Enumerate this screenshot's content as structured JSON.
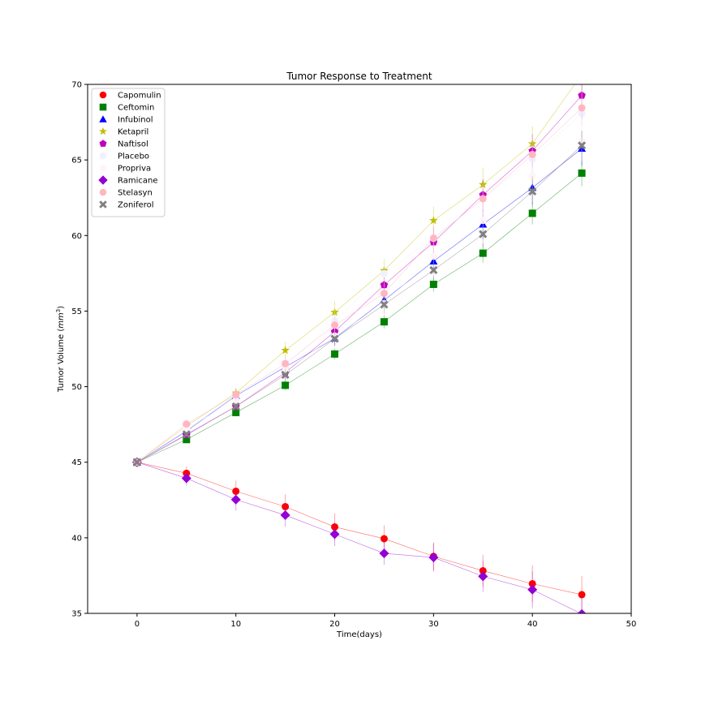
{
  "chart_data": {
    "type": "line",
    "title": "Tumor Response to Treatment",
    "xlabel": "Time(days)",
    "ylabel_main": "Tumor Volume (",
    "ylabel_mm": "mm",
    "ylabel_exp": "3",
    "ylabel_close": ")",
    "xlim": [
      -5,
      50
    ],
    "ylim": [
      35,
      70
    ],
    "xticks": [
      0,
      10,
      20,
      30,
      40,
      50
    ],
    "yticks": [
      35,
      40,
      45,
      50,
      55,
      60,
      65,
      70
    ],
    "grid": false,
    "legend_position": "top-left",
    "x": [
      0,
      5,
      10,
      15,
      20,
      25,
      30,
      35,
      40,
      45
    ],
    "series": [
      {
        "name": "Capomulin",
        "color": "#ff0000",
        "marker": "circle",
        "values": [
          45.0,
          44.27,
          43.08,
          42.06,
          40.72,
          39.94,
          38.77,
          37.82,
          36.96,
          36.24
        ],
        "errors": [
          0,
          0.45,
          0.7,
          0.84,
          0.91,
          0.88,
          0.93,
          1.05,
          1.22,
          1.22
        ]
      },
      {
        "name": "Ceftomin",
        "color": "#008000",
        "marker": "square",
        "values": [
          45.0,
          46.5,
          48.29,
          50.09,
          52.16,
          54.29,
          56.77,
          58.83,
          61.47,
          64.13
        ],
        "errors": [
          0,
          0.16,
          0.24,
          0.33,
          0.36,
          0.44,
          0.49,
          0.62,
          0.74,
          0.87
        ]
      },
      {
        "name": "Infubinol",
        "color": "#0000ff",
        "marker": "triangle",
        "values": [
          45.0,
          47.06,
          49.4,
          51.3,
          53.2,
          55.72,
          58.3,
          60.74,
          63.16,
          65.76
        ],
        "errors": [
          0,
          0.24,
          0.28,
          0.36,
          0.48,
          0.55,
          0.63,
          0.98,
          1.06,
          1.14
        ]
      },
      {
        "name": "Ketapril",
        "color": "#bfbf00",
        "marker": "star",
        "values": [
          45.0,
          47.39,
          49.58,
          52.4,
          54.92,
          57.68,
          60.99,
          63.37,
          66.07,
          70.66
        ],
        "errors": [
          0,
          0.26,
          0.36,
          0.58,
          0.73,
          0.76,
          0.93,
          1.13,
          1.16,
          1.45
        ]
      },
      {
        "name": "Naftisol",
        "color": "#bf00bf",
        "marker": "pentagon",
        "values": [
          45.0,
          46.8,
          48.69,
          50.93,
          53.64,
          56.73,
          59.56,
          62.69,
          65.6,
          69.27
        ],
        "errors": [
          0,
          0.2,
          0.33,
          0.54,
          0.83,
          0.91,
          0.98,
          1.04,
          1.09,
          1.56
        ]
      },
      {
        "name": "Placebo",
        "color": "#f0f0ff",
        "marker": "circle",
        "values": [
          45.0,
          47.13,
          49.42,
          51.36,
          54.36,
          57.48,
          59.81,
          62.42,
          65.05,
          68.08
        ],
        "errors": [
          0,
          0.22,
          0.4,
          0.61,
          0.84,
          0.88,
          0.99,
          1.07,
          1.32,
          1.52
        ]
      },
      {
        "name": "Propriva",
        "color": "#fff5f8",
        "marker": "circle",
        "values": [
          45.0,
          47.25,
          49.1,
          51.07,
          53.35,
          55.5,
          58.63,
          61.0,
          63.95,
          66.26
        ],
        "errors": [
          0,
          0.23,
          0.38,
          0.47,
          0.56,
          0.73,
          0.85,
          1.06,
          1.19,
          1.36
        ]
      },
      {
        "name": "Ramicane",
        "color": "#9400d3",
        "marker": "diamond",
        "values": [
          45.0,
          43.94,
          42.53,
          41.5,
          40.24,
          38.97,
          38.7,
          37.45,
          36.57,
          34.96
        ],
        "errors": [
          0,
          0.48,
          0.72,
          0.77,
          0.79,
          0.75,
          0.93,
          1.03,
          1.22,
          1.23
        ]
      },
      {
        "name": "Stelasyn",
        "color": "#ffb6c1",
        "marker": "circle",
        "values": [
          45.0,
          47.53,
          49.46,
          51.53,
          54.07,
          56.17,
          59.83,
          62.44,
          65.36,
          68.44
        ],
        "errors": [
          0,
          0.24,
          0.43,
          0.49,
          0.62,
          0.74,
          0.9,
          0.94,
          1.13,
          1.23
        ]
      },
      {
        "name": "Zoniferol",
        "color": "#808080",
        "marker": "x",
        "values": [
          45.0,
          46.85,
          48.69,
          50.78,
          53.17,
          55.43,
          57.71,
          60.09,
          62.92,
          65.96
        ],
        "errors": [
          0,
          0.19,
          0.26,
          0.36,
          0.52,
          0.6,
          0.8,
          0.88,
          1.0,
          1.0
        ]
      }
    ]
  }
}
